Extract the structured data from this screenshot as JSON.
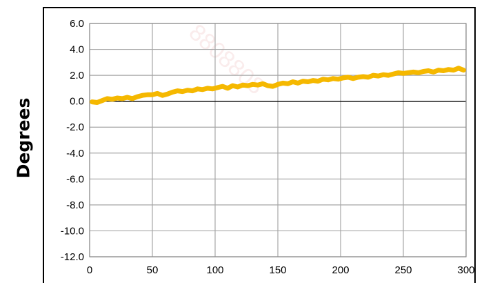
{
  "chart_data": {
    "type": "line",
    "title": "",
    "xlabel": "",
    "ylabel": "Degrees",
    "xlim": [
      0,
      300
    ],
    "ylim": [
      -12.0,
      6.0
    ],
    "x_ticks": [
      0,
      50,
      100,
      150,
      200,
      250,
      300
    ],
    "y_ticks": [
      6.0,
      4.0,
      2.0,
      0.0,
      -2.0,
      -4.0,
      -6.0,
      -8.0,
      -10.0,
      -12.0
    ],
    "x_tick_labels": [
      "0",
      "50",
      "100",
      "150",
      "200",
      "250",
      "300"
    ],
    "y_tick_labels": [
      "6.0",
      "4.0",
      "2.0",
      "0.0",
      "-2.0",
      "-4.0",
      "-6.0",
      "-8.0",
      "-10.0",
      "-12.0"
    ],
    "grid": true,
    "zero_line": true,
    "legend": "none",
    "series": [
      {
        "color": "#F5B800",
        "x": [
          2,
          6,
          10,
          14,
          18,
          22,
          26,
          30,
          34,
          38,
          42,
          46,
          50,
          54,
          58,
          62,
          66,
          70,
          74,
          78,
          82,
          86,
          90,
          94,
          98,
          102,
          106,
          110,
          114,
          118,
          122,
          126,
          130,
          134,
          138,
          142,
          146,
          150,
          154,
          158,
          162,
          166,
          170,
          174,
          178,
          182,
          186,
          190,
          194,
          198,
          202,
          206,
          210,
          214,
          218,
          222,
          226,
          230,
          234,
          238,
          242,
          246,
          250,
          254,
          258,
          262,
          266,
          270,
          274,
          278,
          282,
          286,
          290,
          294,
          298
        ],
        "y": [
          -0.05,
          -0.1,
          0.05,
          0.2,
          0.15,
          0.25,
          0.2,
          0.3,
          0.2,
          0.35,
          0.45,
          0.5,
          0.5,
          0.6,
          0.45,
          0.55,
          0.7,
          0.8,
          0.75,
          0.85,
          0.8,
          0.95,
          0.9,
          1.0,
          0.95,
          1.05,
          1.15,
          1.0,
          1.2,
          1.1,
          1.25,
          1.2,
          1.3,
          1.25,
          1.35,
          1.2,
          1.15,
          1.3,
          1.4,
          1.35,
          1.5,
          1.4,
          1.55,
          1.5,
          1.6,
          1.55,
          1.7,
          1.65,
          1.75,
          1.7,
          1.8,
          1.85,
          1.75,
          1.85,
          1.9,
          1.85,
          2.0,
          1.95,
          2.05,
          2.0,
          2.1,
          2.2,
          2.15,
          2.2,
          2.25,
          2.2,
          2.3,
          2.35,
          2.25,
          2.4,
          2.35,
          2.45,
          2.4,
          2.55,
          2.4
        ]
      }
    ]
  },
  "watermark": {
    "text": "8808808"
  }
}
